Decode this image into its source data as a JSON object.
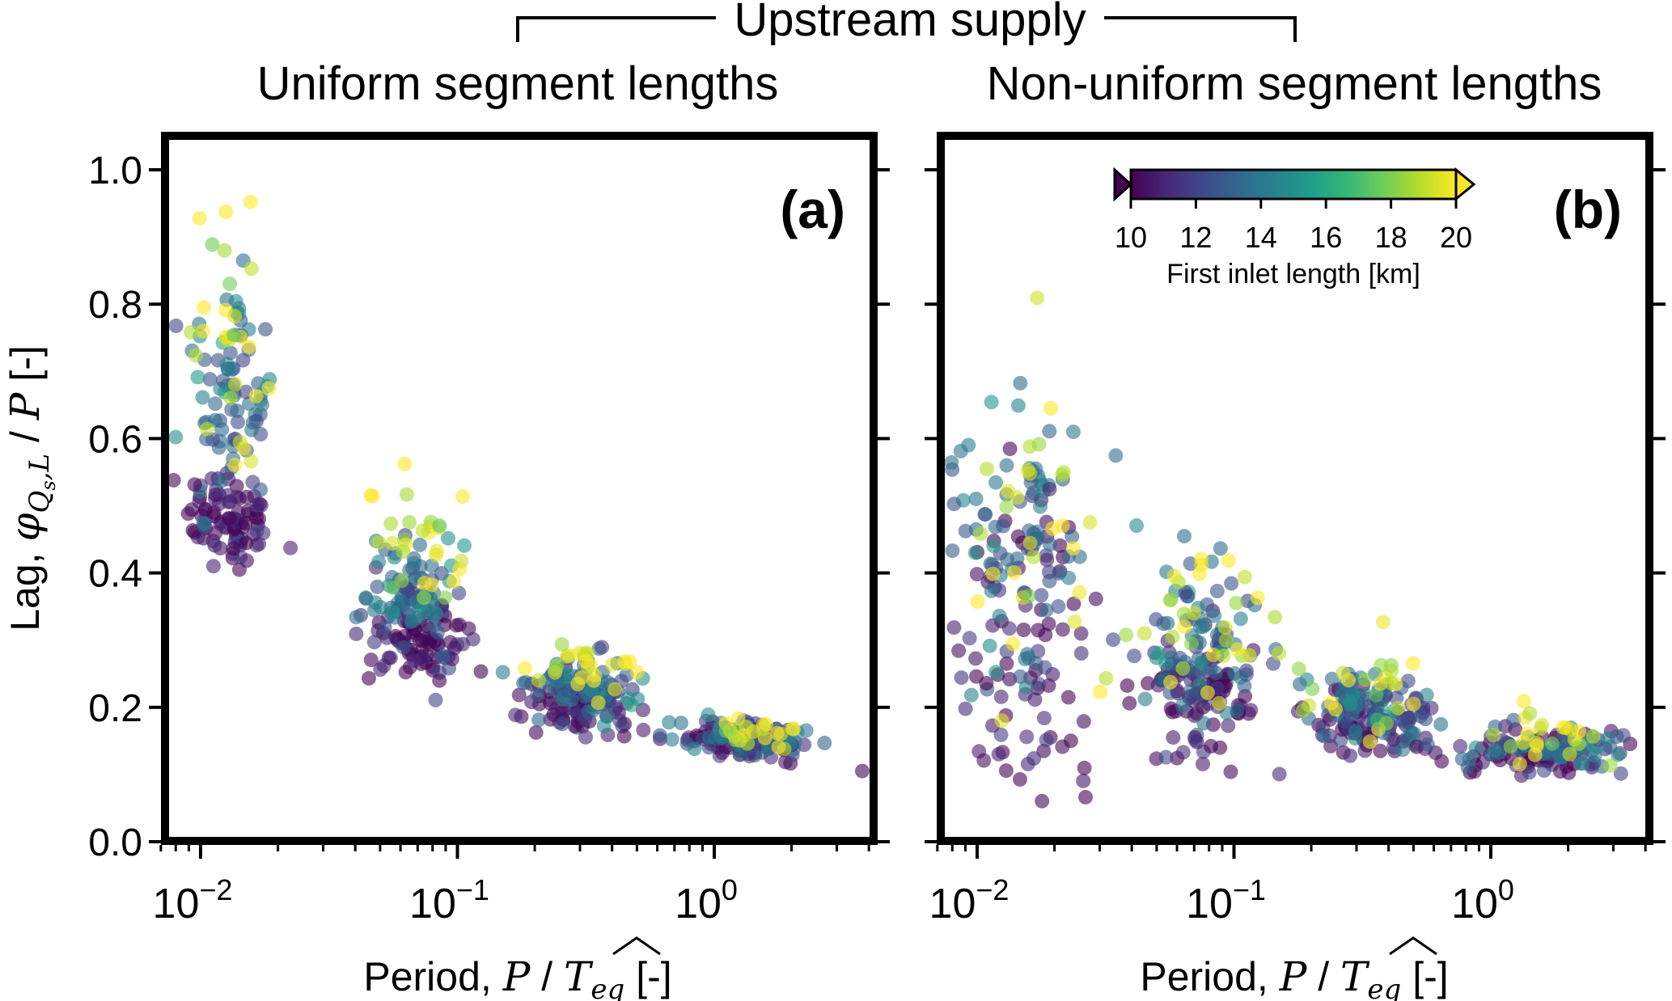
{
  "figure_title": "Upstream supply",
  "colorbar": {
    "label": "First inlet length [km]",
    "min": 10,
    "max": 20,
    "ticks": [
      "10",
      "12",
      "14",
      "16",
      "18",
      "20"
    ],
    "colors": [
      "#440154",
      "#482878",
      "#3e4989",
      "#31688e",
      "#26828e",
      "#1f9e89",
      "#35b779",
      "#6ece58",
      "#b5de2b",
      "#fde725"
    ]
  },
  "y_axis": {
    "label_prefix": "Lag, ",
    "label_phi": "φ",
    "label_sub": "Q",
    "label_subsub": "s",
    "label_sub2": ",L",
    "label_suffix": " / ",
    "label_P": "P",
    "label_units": " [-]",
    "ticks": [
      "0.0",
      "0.2",
      "0.4",
      "0.6",
      "0.8",
      "1.0"
    ]
  },
  "x_axis": {
    "label_prefix": "Period, ",
    "label_P": "P",
    "label_mid": " / ",
    "label_T": "T",
    "label_sub": "eq",
    "label_units": " [-]",
    "ticks": [
      {
        "base": "10",
        "exp": "−2"
      },
      {
        "base": "10",
        "exp": "−1"
      },
      {
        "base": "10",
        "exp": "0"
      }
    ]
  },
  "chart_data": [
    {
      "type": "scatter",
      "panel": "(a)",
      "title": "Uniform segment lengths",
      "xscale": "log",
      "xlim": [
        0.0065,
        4.5
      ],
      "ylim": [
        0.0,
        1.05
      ],
      "color_variable": "First inlet length [km]",
      "clusters": [
        {
          "period_center": 0.013,
          "x_spread_log": 0.085,
          "count": 190,
          "low_color_value": 10.5,
          "low_lag_mean": 0.48,
          "low_lag_sd": 0.04,
          "mid_color_value": 13.6,
          "mid_lag_mean": 0.66,
          "mid_lag_sd": 0.09,
          "high_color_value": 19.5,
          "high_lag_mean": 0.78,
          "high_lag_sd": 0.1
        },
        {
          "period_center": 0.068,
          "x_spread_log": 0.09,
          "count": 190,
          "low_color_value": 10.5,
          "low_lag_mean": 0.3,
          "low_lag_sd": 0.03,
          "mid_color_value": 13.6,
          "mid_lag_mean": 0.37,
          "mid_lag_sd": 0.04,
          "high_color_value": 19.5,
          "high_lag_mean": 0.44,
          "high_lag_sd": 0.04
        },
        {
          "period_center": 0.3,
          "x_spread_log": 0.1,
          "count": 170,
          "low_color_value": 10.5,
          "low_lag_mean": 0.2,
          "low_lag_sd": 0.02,
          "mid_color_value": 13.6,
          "mid_lag_mean": 0.235,
          "mid_lag_sd": 0.025,
          "high_color_value": 19.5,
          "high_lag_mean": 0.26,
          "high_lag_sd": 0.02
        },
        {
          "period_center": 1.35,
          "x_spread_log": 0.13,
          "count": 150,
          "low_color_value": 10.5,
          "low_lag_mean": 0.15,
          "low_lag_sd": 0.015,
          "mid_color_value": 13.6,
          "mid_lag_mean": 0.155,
          "mid_lag_sd": 0.015,
          "high_color_value": 19.5,
          "high_lag_mean": 0.165,
          "high_lag_sd": 0.015
        }
      ]
    },
    {
      "type": "scatter",
      "panel": "(b)",
      "title": "Non-uniform segment lengths",
      "xscale": "log",
      "xlim": [
        0.0065,
        4.5
      ],
      "ylim": [
        0.0,
        1.05
      ],
      "color_variable": "First inlet length [km]",
      "clusters": [
        {
          "period_center": 0.016,
          "x_spread_log": 0.13,
          "count": 200,
          "low_color_value": 10.5,
          "low_lag_mean": 0.3,
          "low_lag_sd": 0.13,
          "mid_color_value": 13.6,
          "mid_lag_mean": 0.45,
          "mid_lag_sd": 0.1,
          "high_color_value": 19.5,
          "high_lag_mean": 0.45,
          "high_lag_sd": 0.15
        },
        {
          "period_center": 0.075,
          "x_spread_log": 0.12,
          "count": 200,
          "low_color_value": 10.5,
          "low_lag_mean": 0.22,
          "low_lag_sd": 0.05,
          "mid_color_value": 13.6,
          "mid_lag_mean": 0.28,
          "mid_lag_sd": 0.06,
          "high_color_value": 19.5,
          "high_lag_mean": 0.32,
          "high_lag_sd": 0.06
        },
        {
          "period_center": 0.33,
          "x_spread_log": 0.13,
          "count": 170,
          "low_color_value": 10.5,
          "low_lag_mean": 0.18,
          "low_lag_sd": 0.025,
          "mid_color_value": 13.6,
          "mid_lag_mean": 0.2,
          "mid_lag_sd": 0.03,
          "high_color_value": 19.5,
          "high_lag_mean": 0.23,
          "high_lag_sd": 0.04
        },
        {
          "period_center": 1.6,
          "x_spread_log": 0.17,
          "count": 150,
          "low_color_value": 10.5,
          "low_lag_mean": 0.13,
          "low_lag_sd": 0.02,
          "mid_color_value": 13.6,
          "mid_lag_mean": 0.14,
          "mid_lag_sd": 0.02,
          "high_color_value": 19.5,
          "high_lag_mean": 0.16,
          "high_lag_sd": 0.02
        }
      ]
    }
  ]
}
